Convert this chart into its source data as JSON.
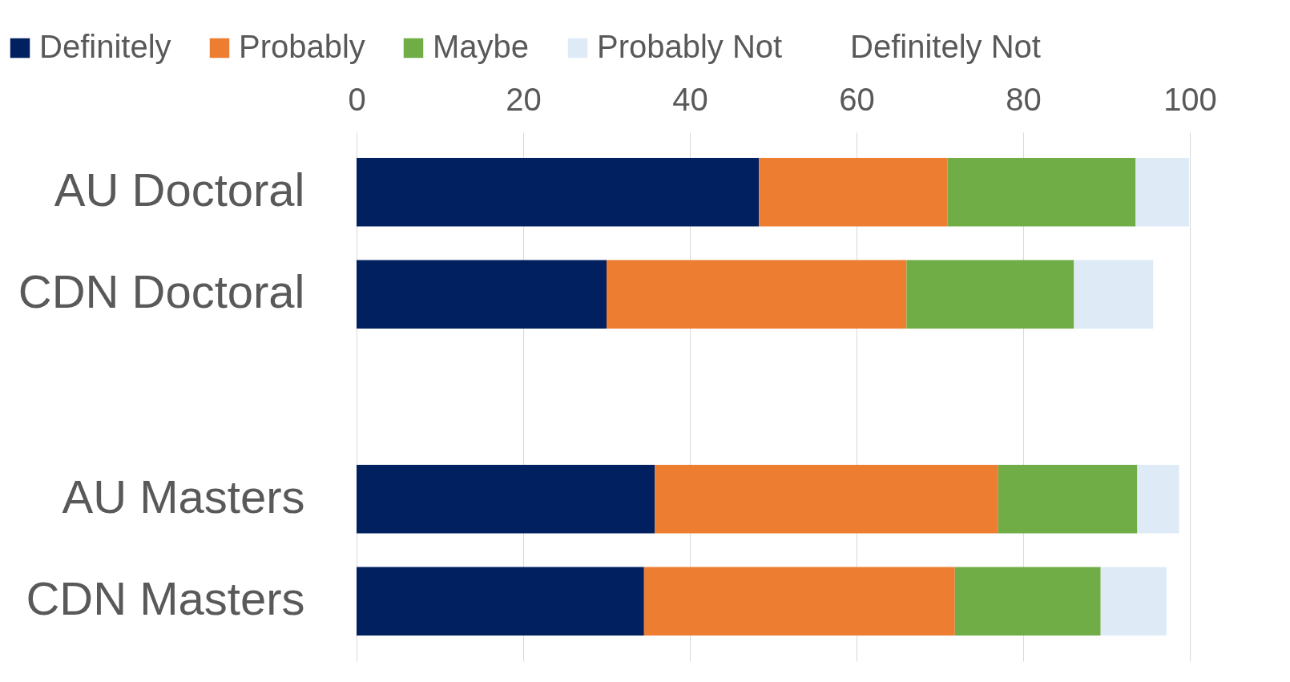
{
  "chart_data": {
    "type": "bar",
    "orientation": "horizontal",
    "stacked": true,
    "categories": [
      "AU Doctoral",
      "CDN Doctoral",
      null,
      "AU Masters",
      "CDN Masters"
    ],
    "series": [
      {
        "name": "Definitely",
        "color": "#002060",
        "values": [
          48.3,
          30.0,
          null,
          35.8,
          34.5
        ]
      },
      {
        "name": "Probably",
        "color": "#ed7d31",
        "values": [
          22.6,
          36.0,
          null,
          41.2,
          37.3
        ]
      },
      {
        "name": "Maybe",
        "color": "#70ad47",
        "values": [
          22.6,
          20.1,
          null,
          16.7,
          17.5
        ]
      },
      {
        "name": "Probably Not",
        "color": "#deebf7",
        "values": [
          6.4,
          9.5,
          null,
          5.0,
          7.9
        ]
      },
      {
        "name": "Definitely Not",
        "values": [
          null,
          null,
          null,
          null,
          null
        ]
      }
    ],
    "xlim": [
      0,
      100
    ],
    "xticks": [
      0,
      20,
      40,
      60,
      80,
      100
    ],
    "grid": "x",
    "legend": "top"
  }
}
